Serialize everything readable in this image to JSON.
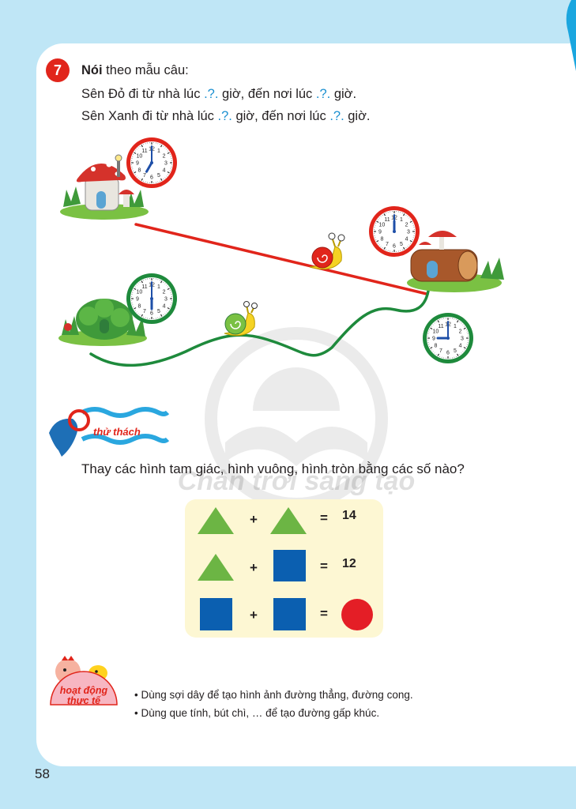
{
  "exercise": {
    "number": "7",
    "title_bold": "Nói",
    "title_rest": " theo mẫu câu:",
    "line1": {
      "a": "Sên Đỏ đi từ nhà lúc ",
      "q1": ".?.",
      "b": " giờ, đến nơi lúc ",
      "q2": ".?.",
      "c": " giờ."
    },
    "line2": {
      "a": "Sên Xanh đi từ nhà lúc ",
      "q1": ".?.",
      "b": " giờ, đến nơi lúc ",
      "q2": ".?.",
      "c": " giờ."
    }
  },
  "clock_numerals": [
    "12",
    "1",
    "2",
    "3",
    "4",
    "5",
    "6",
    "7",
    "8",
    "9",
    "10",
    "11"
  ],
  "clocks": [
    {
      "name": "red-start-clock",
      "rim": "#e1251b",
      "hour": 7
    },
    {
      "name": "red-end-clock",
      "rim": "#e1251b",
      "hour": 12
    },
    {
      "name": "green-start-clock",
      "rim": "#1e8a3c",
      "hour": 6
    },
    {
      "name": "green-end-clock",
      "rim": "#1e8a3c",
      "hour": 9
    }
  ],
  "challenge": {
    "badge_label": "thử thách",
    "question": "Thay các hình tam giác, hình vuông, hình tròn bằng các số nào?",
    "equations": [
      {
        "plus": "+",
        "equals": "=",
        "result": "14"
      },
      {
        "plus": "+",
        "equals": "=",
        "result": "12"
      },
      {
        "plus": "+",
        "equals": "=",
        "result": ""
      }
    ]
  },
  "activity": {
    "badge_line1": "hoạt động",
    "badge_line2": "thực tế",
    "bullets": [
      "• Dùng sợi dây để tạo hình ảnh đường thẳng, đường cong.",
      "• Dùng que tính, bút chì, … để tạo đường gấp khúc."
    ]
  },
  "watermark": "Chân trời sáng tạo",
  "page_number": "58",
  "colors": {
    "page_bg": "#bfe6f6",
    "red_path": "#e1251b",
    "green_path": "#1e8a3c",
    "shape_green": "#6cb544",
    "shape_blue": "#0b5fb0",
    "shape_red": "#e41e26",
    "panel": "#fdf7d3",
    "badge": "#e1251b"
  }
}
